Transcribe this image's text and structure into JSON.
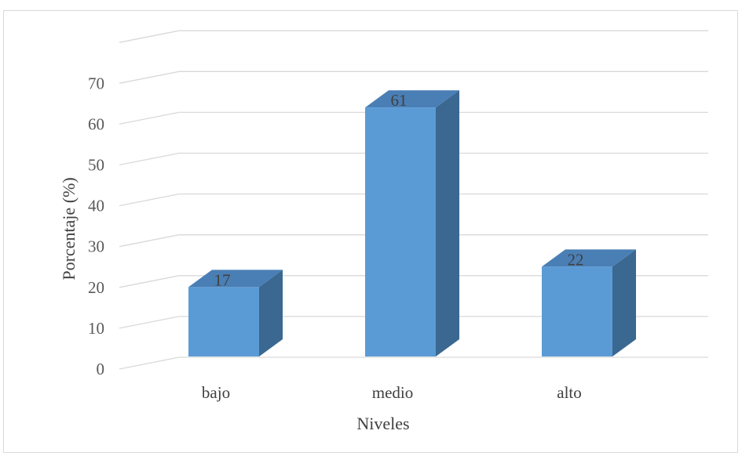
{
  "chart_data": {
    "type": "bar",
    "style": "3d-clustered-column",
    "categories": [
      "bajo",
      "medio",
      "alto"
    ],
    "values": [
      17,
      61,
      22
    ],
    "data_labels": [
      "17",
      "61",
      "22"
    ],
    "xlabel": "Niveles",
    "ylabel": "Porcentaje (%)",
    "ylim": [
      0,
      80
    ],
    "yticks": [
      "0",
      "10",
      "20",
      "30",
      "40",
      "50",
      "60",
      "70"
    ],
    "grid": true,
    "legend": "none",
    "colors": {
      "bar_front": "#5b9bd5",
      "bar_top": "#4a7fb5",
      "bar_side": "#3a6891",
      "gridline": "#d9d9d9"
    }
  }
}
